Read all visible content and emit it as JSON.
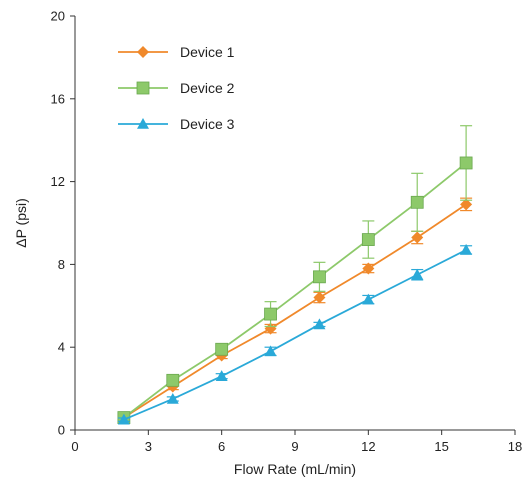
{
  "chart_data": {
    "type": "line",
    "title": "",
    "xlabel": "Flow Rate (mL/min)",
    "ylabel": "ΔP (psi)",
    "xlim": [
      0,
      18
    ],
    "ylim": [
      0,
      20
    ],
    "x_ticks": [
      0,
      3,
      6,
      9,
      12,
      15,
      18
    ],
    "y_ticks": [
      0,
      4,
      8,
      12,
      16,
      20
    ],
    "grid": false,
    "legend_position": "top-left",
    "x": [
      2,
      4,
      6,
      8,
      10,
      12,
      14,
      16
    ],
    "series": [
      {
        "name": "Device 1",
        "color": "#f0892b",
        "marker": "diamond",
        "values": [
          0.6,
          2.1,
          3.6,
          4.9,
          6.4,
          7.8,
          9.3,
          10.9
        ],
        "errors": [
          0.1,
          0.15,
          0.15,
          0.2,
          0.25,
          0.2,
          0.3,
          0.3
        ]
      },
      {
        "name": "Device 2",
        "color": "#8dc96a",
        "marker": "square",
        "values": [
          0.6,
          2.4,
          3.9,
          5.6,
          7.4,
          9.2,
          11.0,
          12.9
        ],
        "errors": [
          0.1,
          0.2,
          0.25,
          0.6,
          0.7,
          0.9,
          1.4,
          1.8
        ]
      },
      {
        "name": "Device 3",
        "color": "#2aa9d8",
        "marker": "triangle",
        "values": [
          0.5,
          1.5,
          2.6,
          3.8,
          5.1,
          6.3,
          7.5,
          8.7
        ],
        "errors": [
          0.08,
          0.1,
          0.12,
          0.2,
          0.1,
          0.2,
          0.25,
          0.2
        ]
      }
    ]
  }
}
